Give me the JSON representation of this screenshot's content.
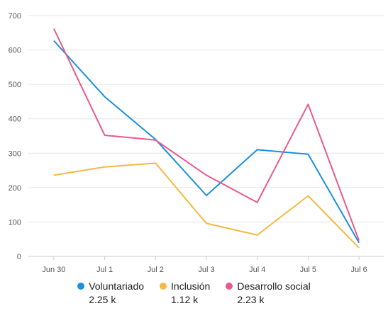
{
  "chart_data": {
    "type": "line",
    "categories": [
      "Jun 30",
      "Jul 1",
      "Jul 2",
      "Jul 3",
      "Jul 4",
      "Jul 5",
      "Jul 6"
    ],
    "ylim": [
      0,
      700
    ],
    "yticks": [
      "0",
      "100",
      "200",
      "300",
      "400",
      "500",
      "600",
      "700"
    ],
    "grid": true,
    "legend_position": "bottom",
    "series": [
      {
        "name": "Voluntariado",
        "total": "2.25 k",
        "color": "#1a90e0",
        "values": [
          627,
          464,
          340,
          177,
          310,
          297,
          40
        ]
      },
      {
        "name": "Inclusión",
        "total": "1.12 k",
        "color": "#f5b942",
        "values": [
          236,
          260,
          271,
          96,
          62,
          176,
          25
        ]
      },
      {
        "name": "Desarrollo social",
        "total": "2.23 k",
        "color": "#e8598e",
        "values": [
          662,
          352,
          338,
          236,
          157,
          442,
          46
        ]
      }
    ]
  }
}
